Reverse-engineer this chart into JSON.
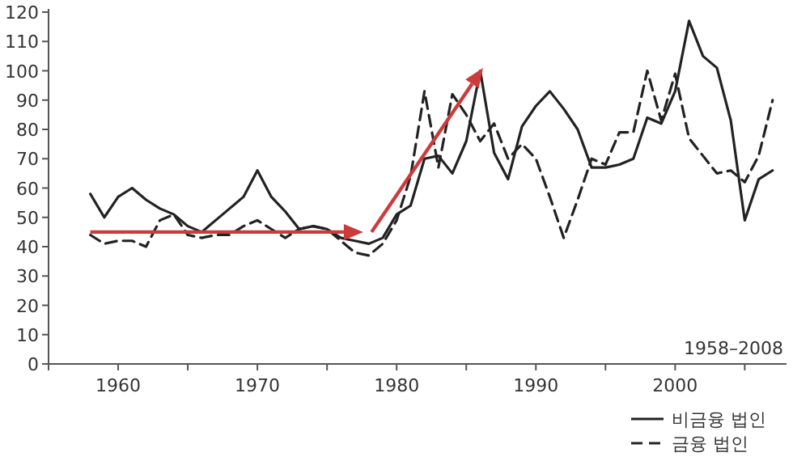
{
  "chart_data": {
    "type": "line",
    "x": [
      1958,
      1959,
      1960,
      1961,
      1962,
      1963,
      1964,
      1965,
      1966,
      1967,
      1968,
      1969,
      1970,
      1971,
      1972,
      1973,
      1974,
      1975,
      1976,
      1977,
      1978,
      1979,
      1980,
      1981,
      1982,
      1983,
      1984,
      1985,
      1986,
      1987,
      1988,
      1989,
      1990,
      1991,
      1992,
      1993,
      1994,
      1995,
      1996,
      1997,
      1998,
      1999,
      2000,
      2001,
      2002,
      2003,
      2004,
      2005,
      2006,
      2007
    ],
    "series": [
      {
        "name": "비금융 법인",
        "color": "#222222",
        "line_style": "solid",
        "values": [
          58,
          50,
          57,
          60,
          56,
          53,
          51,
          47,
          45,
          49,
          53,
          57,
          66,
          57,
          52,
          46,
          47,
          46,
          43,
          42,
          41,
          43,
          51,
          54,
          70,
          71,
          65,
          76,
          100,
          72,
          63,
          81,
          88,
          93,
          87,
          80,
          67,
          67,
          68,
          70,
          84,
          82,
          93,
          117,
          105,
          101,
          83,
          49,
          63,
          66
        ]
      },
      {
        "name": "금융 법인",
        "color": "#222222",
        "line_style": "dashed",
        "values": [
          44,
          41,
          42,
          42,
          40,
          49,
          51,
          44,
          43,
          44,
          44,
          47,
          49,
          46,
          43,
          46,
          47,
          46,
          42,
          38,
          37,
          41,
          49,
          64,
          93,
          67,
          92,
          85,
          76,
          82,
          70,
          75,
          70,
          57,
          43,
          56,
          70,
          68,
          79,
          79,
          100,
          83,
          99,
          77,
          71,
          65,
          66,
          62,
          71,
          90
        ]
      }
    ],
    "xlim": [
      1955,
      2008
    ],
    "xticks": [
      1960,
      {
        "value": 1965,
        "label": null
      },
      1970,
      {
        "value": 1975,
        "label": null
      },
      1980,
      {
        "value": 1985,
        "label": null
      },
      1990,
      {
        "value": 1995,
        "label": null
      },
      2000,
      {
        "value": 2005,
        "label": null
      }
    ],
    "ylim": [
      0,
      120
    ],
    "yticks": [
      0,
      10,
      20,
      30,
      40,
      50,
      60,
      70,
      80,
      90,
      100,
      110,
      120
    ],
    "grid": false,
    "legend": "bottom right",
    "annotations": [
      "1958–2008"
    ]
  }
}
